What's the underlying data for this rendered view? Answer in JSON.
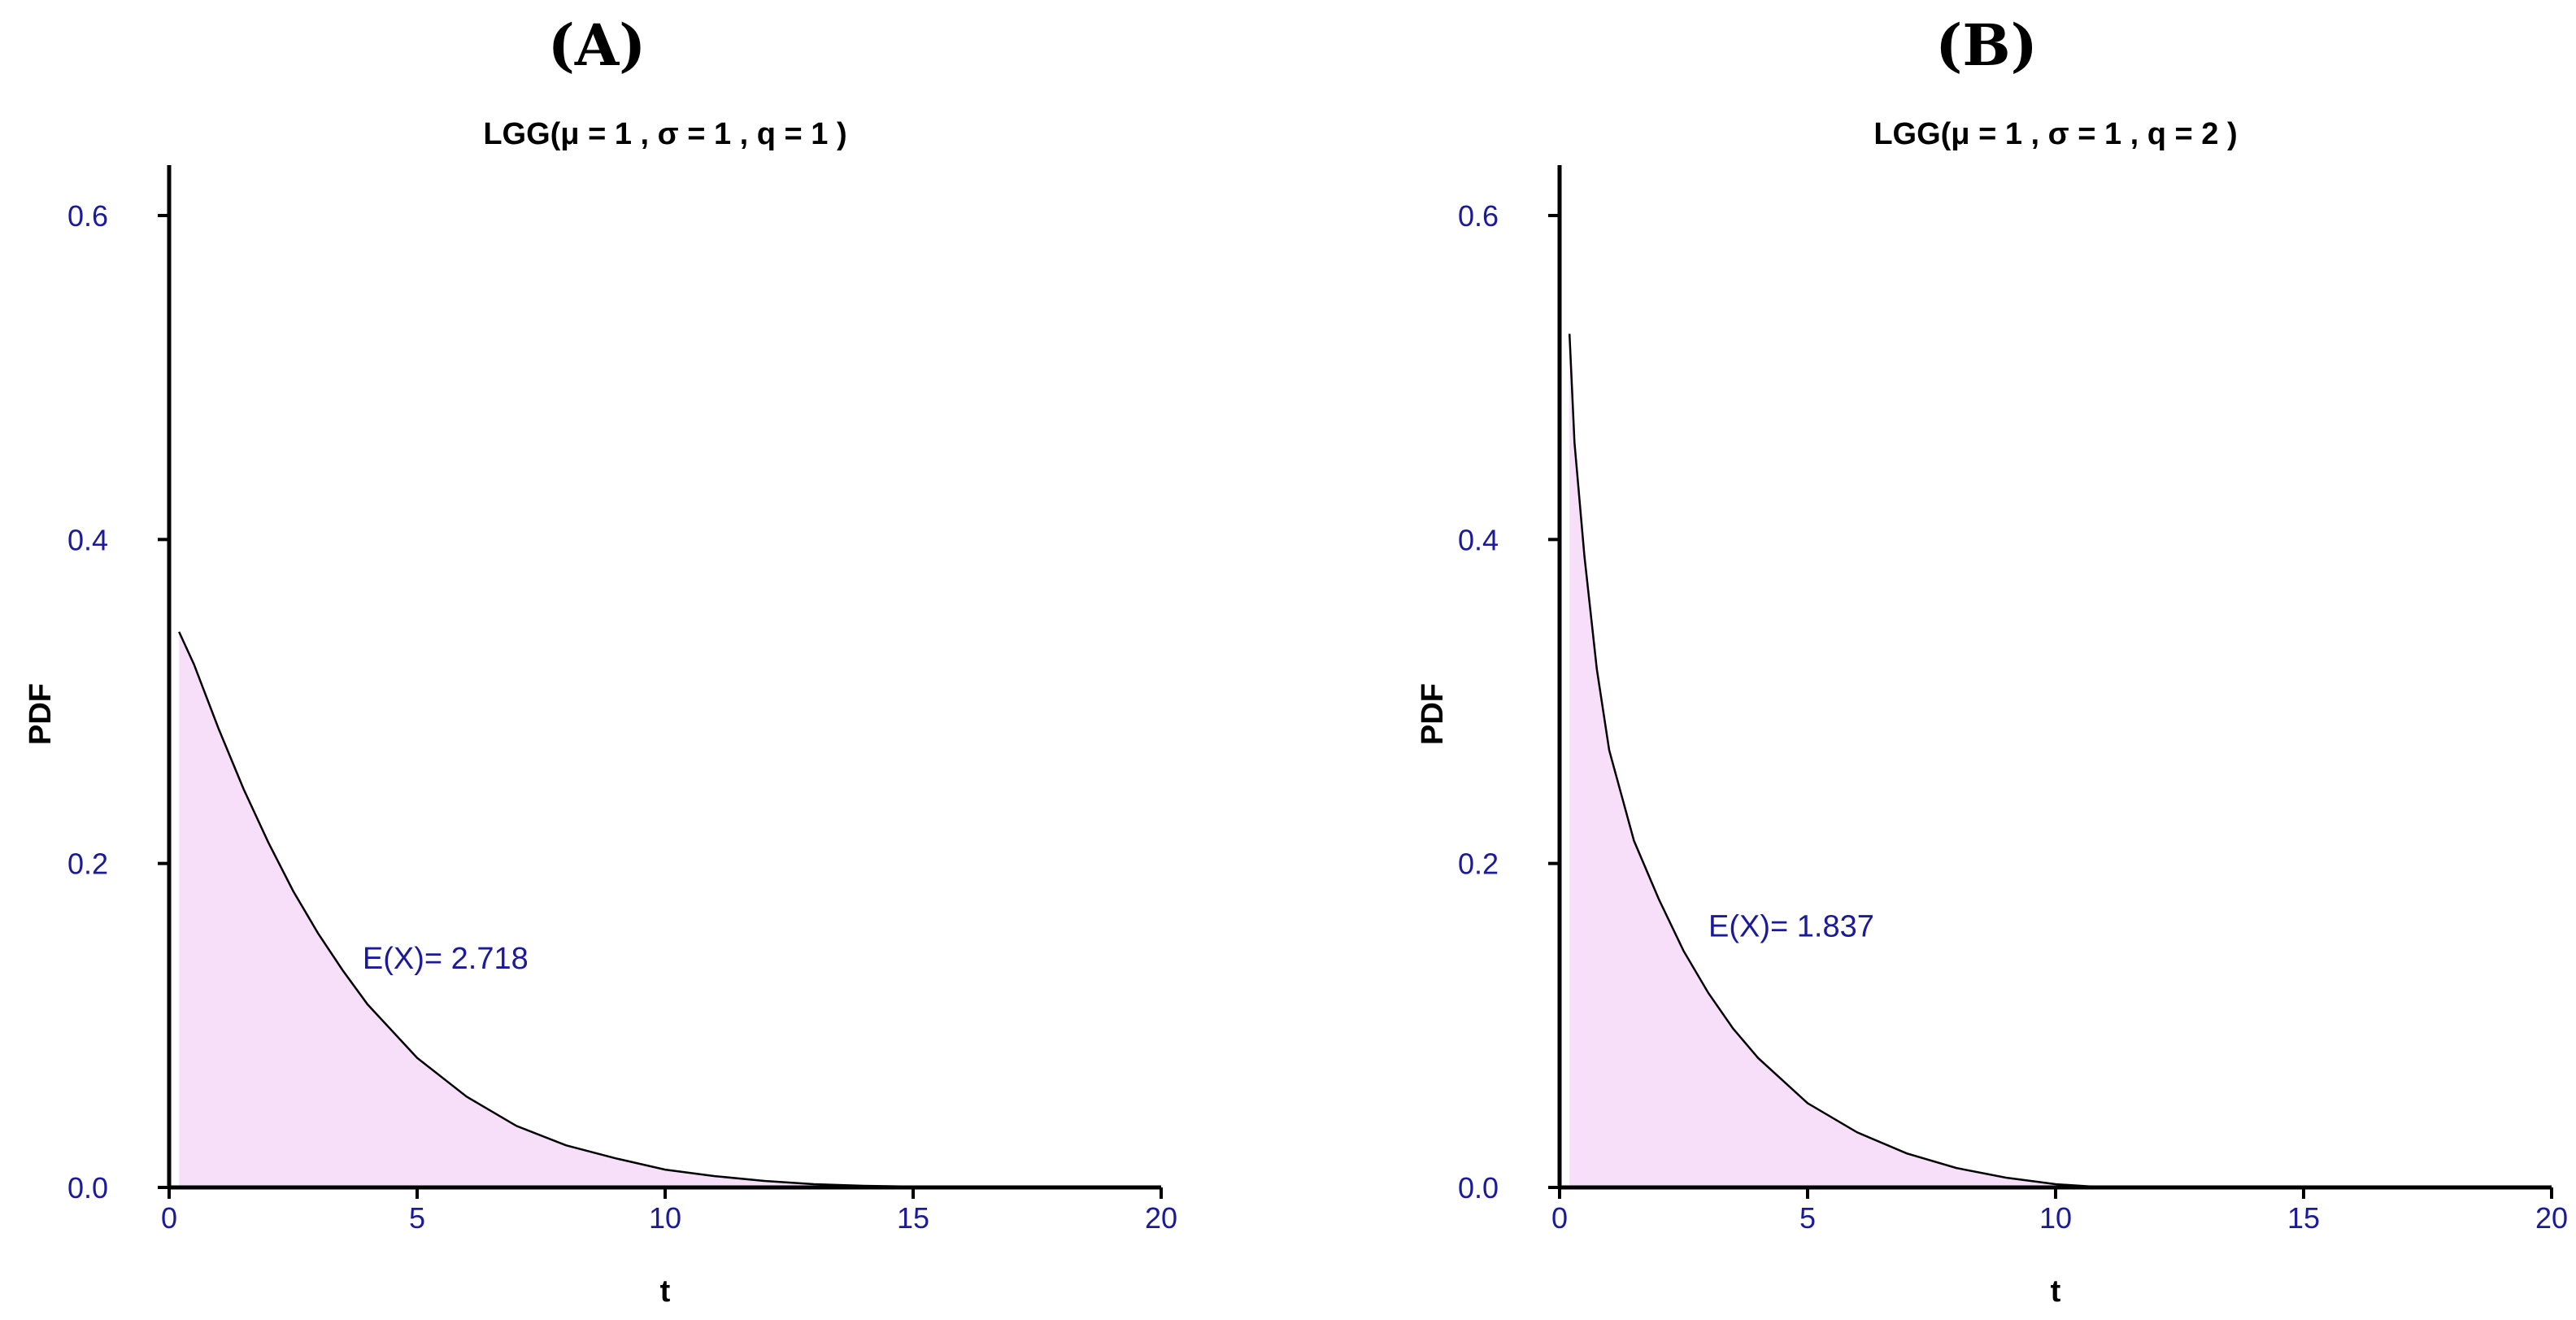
{
  "colors": {
    "fill": "#f7dff9",
    "tick_text": "#1a1a9a",
    "axis": "#000000"
  },
  "chart_data": [
    {
      "panel_label": "(A)",
      "type": "area",
      "title": "LGG(μ = 1 , σ = 1 , q = 1 )",
      "xlabel": "t",
      "ylabel": "PDF",
      "xlim": [
        0,
        20
      ],
      "ylim": [
        0,
        0.63
      ],
      "xticks": [
        0,
        5,
        10,
        15,
        20
      ],
      "xtick_labels": [
        "0",
        "5",
        "10",
        "15",
        "20"
      ],
      "yticks": [
        0.0,
        0.2,
        0.4,
        0.6
      ],
      "ytick_labels": [
        "0.0",
        "0.2",
        "0.4",
        "0.6"
      ],
      "annotation": {
        "text": "E(X)= 2.718",
        "x": 3.9,
        "y": 0.135
      },
      "series": [
        {
          "name": "PDF",
          "x": [
            0.2,
            0.5,
            1,
            1.5,
            2,
            2.5,
            3,
            3.5,
            4,
            5,
            6,
            7,
            8,
            9,
            10,
            11,
            12,
            13,
            14,
            15,
            16,
            20
          ],
          "y": [
            0.343,
            0.323,
            0.283,
            0.246,
            0.213,
            0.183,
            0.157,
            0.134,
            0.113,
            0.08,
            0.056,
            0.038,
            0.026,
            0.018,
            0.011,
            0.007,
            0.004,
            0.002,
            0.001,
            0.0005,
            0.0,
            0.0
          ]
        }
      ]
    },
    {
      "panel_label": "(B)",
      "type": "area",
      "title": "LGG(μ = 1 , σ = 1 , q = 2 )",
      "xlabel": "t",
      "ylabel": "PDF",
      "xlim": [
        0,
        20
      ],
      "ylim": [
        0,
        0.63
      ],
      "xticks": [
        0,
        5,
        10,
        15,
        20
      ],
      "xtick_labels": [
        "0",
        "5",
        "10",
        "15",
        "20"
      ],
      "yticks": [
        0.0,
        0.2,
        0.4,
        0.6
      ],
      "ytick_labels": [
        "0.0",
        "0.2",
        "0.4",
        "0.6"
      ],
      "annotation": {
        "text": "E(X)= 1.837",
        "x": 3.0,
        "y": 0.155
      },
      "series": [
        {
          "name": "PDF",
          "x": [
            0.2,
            0.3,
            0.5,
            0.75,
            1,
            1.5,
            2,
            2.5,
            3,
            3.5,
            4,
            5,
            6,
            7,
            8,
            9,
            10,
            11,
            20
          ],
          "y": [
            0.527,
            0.46,
            0.39,
            0.32,
            0.27,
            0.214,
            0.178,
            0.146,
            0.12,
            0.098,
            0.08,
            0.052,
            0.034,
            0.021,
            0.012,
            0.006,
            0.002,
            0.0,
            0.0
          ]
        }
      ]
    }
  ]
}
